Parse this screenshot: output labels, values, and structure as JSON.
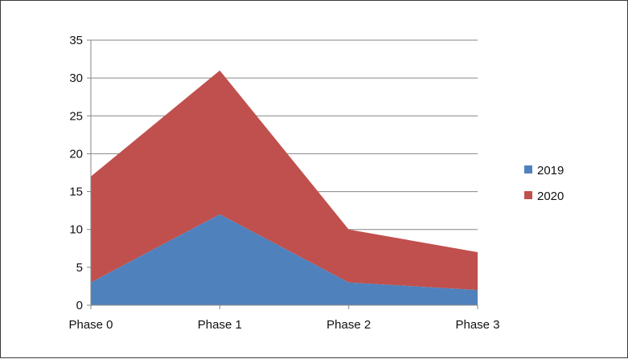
{
  "chart_data": {
    "type": "area",
    "stacked": true,
    "categories": [
      "Phase 0",
      "Phase 1",
      "Phase 2",
      "Phase 3"
    ],
    "series": [
      {
        "name": "2019",
        "values": [
          3,
          12,
          3,
          2
        ],
        "color": "#4f81bd"
      },
      {
        "name": "2020",
        "values": [
          14,
          19,
          7,
          5
        ],
        "color": "#c0504d"
      }
    ],
    "ylim": [
      0,
      35
    ],
    "yticks": [
      "0",
      "5",
      "10",
      "15",
      "20",
      "25",
      "30",
      "35"
    ],
    "grid": true,
    "legend": "right",
    "title": "",
    "xlabel": "",
    "ylabel": ""
  }
}
